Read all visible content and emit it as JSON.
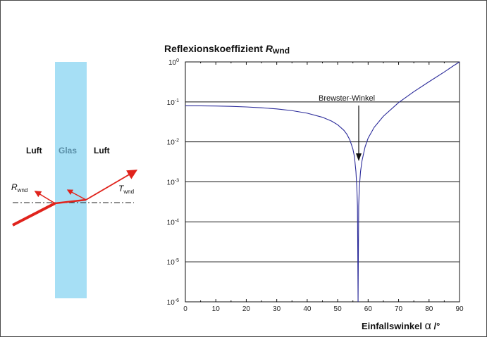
{
  "figure": {
    "title_prefix": "Reflexionskoeffizient ",
    "title_symbol": "R",
    "title_sub": "wnd",
    "xlabel_text": "Einfallswinkel ",
    "xlabel_symbol": "α",
    "xlabel_unit": " /°",
    "annotation": "Brewster-Winkel"
  },
  "diagram": {
    "left_medium": "Luft",
    "middle_medium": "Glas",
    "right_medium": "Luft",
    "reflected_symbol": "R",
    "reflected_sub": "wnd",
    "transmitted_symbol": "T",
    "transmitted_sub": "wnd",
    "colors": {
      "glass": "#a6dff5",
      "ray": "#e0231c",
      "glass_text": "#5a8fa8"
    }
  },
  "chart_data": {
    "type": "line",
    "xlim": [
      0,
      90
    ],
    "ylim": [
      1e-06,
      1
    ],
    "yscale": "log",
    "grid": "horizontal",
    "xticks": [
      0,
      10,
      20,
      30,
      40,
      50,
      60,
      70,
      80,
      90
    ],
    "yticks": [
      {
        "value": 1,
        "base": "10",
        "exp": "0"
      },
      {
        "value": 0.1,
        "base": "10",
        "exp": "-1"
      },
      {
        "value": 0.01,
        "base": "10",
        "exp": "-2"
      },
      {
        "value": 0.001,
        "base": "10",
        "exp": "-3"
      },
      {
        "value": 0.0001,
        "base": "10",
        "exp": "-4"
      },
      {
        "value": 1e-05,
        "base": "10",
        "exp": "-5"
      },
      {
        "value": 1e-06,
        "base": "10",
        "exp": "-6"
      }
    ],
    "series": [
      {
        "color": "#2b2b9a",
        "points": [
          [
            0,
            0.08
          ],
          [
            5,
            0.0797
          ],
          [
            10,
            0.0788
          ],
          [
            15,
            0.0772
          ],
          [
            20,
            0.0748
          ],
          [
            25,
            0.0714
          ],
          [
            30,
            0.0667
          ],
          [
            35,
            0.0605
          ],
          [
            40,
            0.0522
          ],
          [
            45,
            0.0413
          ],
          [
            48,
            0.0331
          ],
          [
            50,
            0.0268
          ],
          [
            52,
            0.0196
          ],
          [
            53,
            0.0156
          ],
          [
            54,
            0.0112
          ],
          [
            55,
            0.0066
          ],
          [
            55.5,
            0.0043
          ],
          [
            56,
            0.0018
          ],
          [
            56.3,
            0.0007
          ],
          [
            56.5,
            0.00025
          ],
          [
            56.7,
            1e-06
          ],
          [
            56.9,
            0.00025
          ],
          [
            57.1,
            0.0007
          ],
          [
            57.5,
            0.0018
          ],
          [
            58,
            0.0034
          ],
          [
            59,
            0.0075
          ],
          [
            60,
            0.0124
          ],
          [
            62,
            0.0232
          ],
          [
            65,
            0.0437
          ],
          [
            70,
            0.096
          ],
          [
            75,
            0.18
          ],
          [
            80,
            0.32
          ],
          [
            85,
            0.56
          ],
          [
            88,
            0.8
          ],
          [
            90,
            1.0
          ]
        ]
      }
    ]
  }
}
